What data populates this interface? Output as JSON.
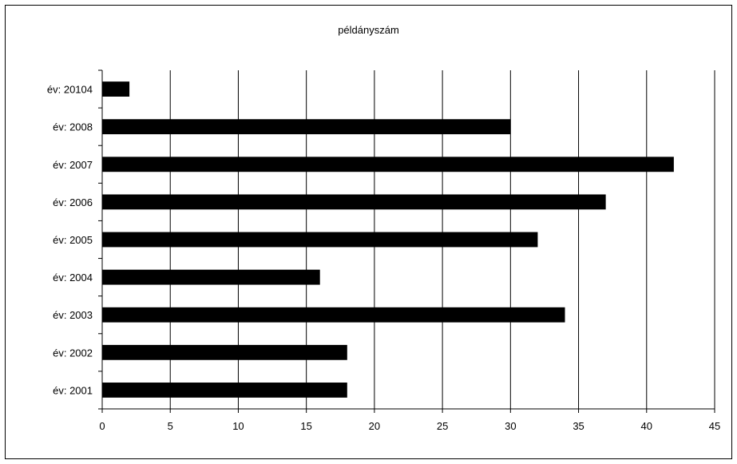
{
  "chart_data": {
    "type": "bar",
    "orientation": "horizontal",
    "title": "példányszám",
    "categories": [
      "év: 2001",
      "év: 2002",
      "év: 2003",
      "év: 2004",
      "év: 2005",
      "év: 2006",
      "év: 2007",
      "év: 2008",
      "év: 20104"
    ],
    "values": [
      18,
      18,
      34,
      16,
      32,
      37,
      42,
      30,
      2
    ],
    "xlim": [
      0,
      45
    ],
    "x_ticks": [
      "0",
      "5",
      "10",
      "15",
      "20",
      "25",
      "30",
      "35",
      "40",
      "45"
    ],
    "grid": "vertical",
    "legend": "none",
    "bar_color": "#000000"
  }
}
